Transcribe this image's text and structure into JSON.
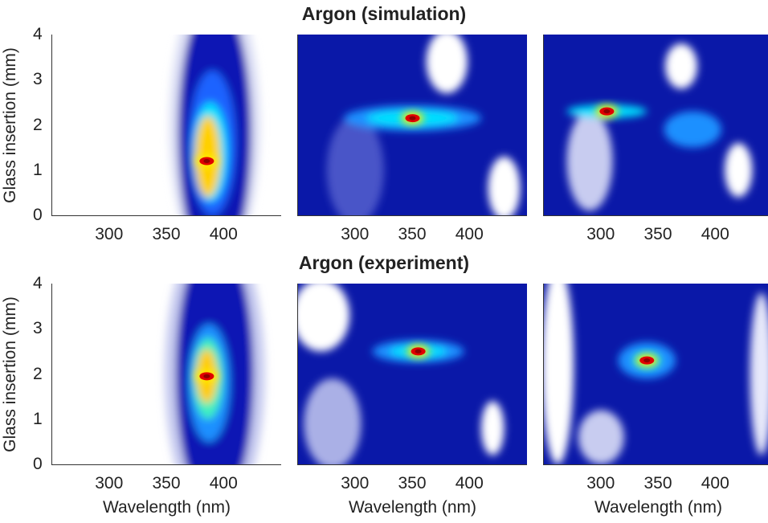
{
  "titles": {
    "top": "Argon (simulation)",
    "bottom": "Argon (experiment)"
  },
  "axes": {
    "ylabel": "Glass insertion (mm)",
    "xlabel": "Wavelength (nm)",
    "yticks": [
      "0",
      "1",
      "2",
      "3",
      "4"
    ],
    "xticks": [
      "300",
      "350",
      "400"
    ]
  },
  "colors": {
    "colormap": [
      "#ffffff",
      "#00008b",
      "#0000ff",
      "#00ffff",
      "#ffff00",
      "#ff0000",
      "#8b0000"
    ]
  },
  "chart_data": [
    {
      "type": "heatmap",
      "row": "simulation",
      "column": 1,
      "xlim": [
        250,
        450
      ],
      "ylim": [
        0,
        4
      ],
      "features": [
        {
          "x": 385,
          "y": 1.2,
          "peak": "red"
        }
      ]
    },
    {
      "type": "heatmap",
      "row": "simulation",
      "column": 2,
      "xlim": [
        250,
        450
      ],
      "ylim": [
        0,
        4
      ],
      "features": [
        {
          "x": 350,
          "y": 2.15,
          "peak": "red"
        }
      ]
    },
    {
      "type": "heatmap",
      "row": "simulation",
      "column": 3,
      "xlim": [
        250,
        450
      ],
      "ylim": [
        0,
        4
      ],
      "features": [
        {
          "x": 305,
          "y": 2.3,
          "peak": "red"
        }
      ]
    },
    {
      "type": "heatmap",
      "row": "experiment",
      "column": 1,
      "xlim": [
        250,
        450
      ],
      "ylim": [
        0,
        4
      ],
      "features": [
        {
          "x": 385,
          "y": 1.95,
          "peak": "red"
        }
      ]
    },
    {
      "type": "heatmap",
      "row": "experiment",
      "column": 2,
      "xlim": [
        250,
        450
      ],
      "ylim": [
        0,
        4
      ],
      "features": [
        {
          "x": 355,
          "y": 2.5,
          "peak": "red"
        }
      ]
    },
    {
      "type": "heatmap",
      "row": "experiment",
      "column": 3,
      "xlim": [
        250,
        450
      ],
      "ylim": [
        0,
        4
      ],
      "features": [
        {
          "x": 340,
          "y": 2.3,
          "peak": "red"
        }
      ]
    }
  ]
}
